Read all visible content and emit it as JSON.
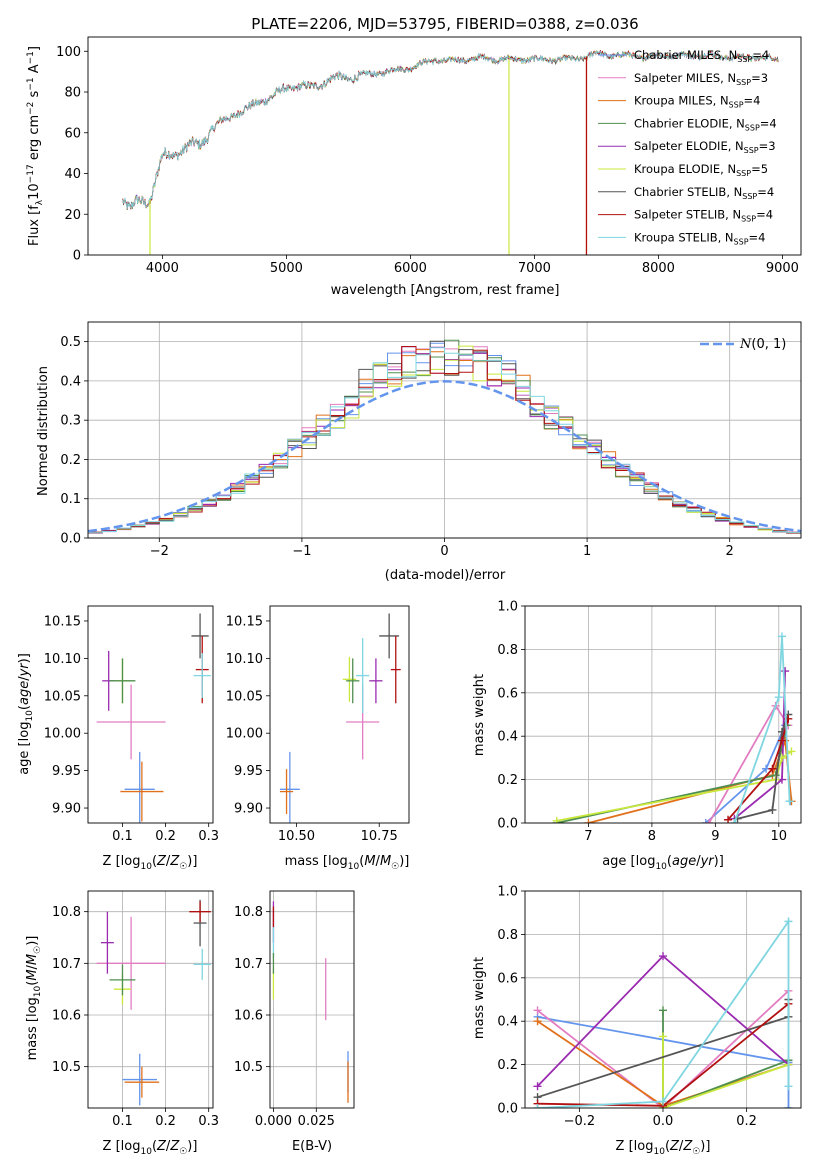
{
  "figure_title": "PLATE=2206, MJD=53795, FIBERID=0388, z=0.036",
  "colors": {
    "chabrier_miles": "#6495ED",
    "salpeter_miles": "#E27DC1",
    "kroupa_miles": "#E1701A",
    "chabrier_elodie": "#4F8F4F",
    "salpeter_elodie": "#9A2BB0",
    "kroupa_elodie": "#C8E83E",
    "chabrier_stelib": "#555555",
    "salpeter_stelib": "#B21010",
    "kroupa_stelib": "#7FD6E0",
    "normal_curve": "#6495ED"
  },
  "chart_data": [
    {
      "type": "line",
      "name": "spectrum",
      "xlabel": "wavelength [Angstrom, rest frame]",
      "ylabel": "Flux [f_λ 10^-17 erg cm^-2 s^-1 A^-1]",
      "xlim": [
        3400,
        9150
      ],
      "ylim": [
        0,
        107
      ],
      "xticks": [
        "4000",
        "5000",
        "6000",
        "7000",
        "8000",
        "9000"
      ],
      "yticks": [
        "0",
        "20",
        "40",
        "60",
        "80",
        "100"
      ],
      "continuum": [
        [
          3680,
          28
        ],
        [
          3740,
          22
        ],
        [
          3800,
          26
        ],
        [
          3900,
          27
        ],
        [
          3950,
          38
        ],
        [
          4000,
          48
        ],
        [
          4100,
          50
        ],
        [
          4200,
          53
        ],
        [
          4300,
          54
        ],
        [
          4400,
          62
        ],
        [
          4500,
          66
        ],
        [
          4600,
          70
        ],
        [
          4700,
          72
        ],
        [
          4800,
          76
        ],
        [
          4900,
          78
        ],
        [
          5000,
          82
        ],
        [
          5100,
          83
        ],
        [
          5200,
          82
        ],
        [
          5300,
          85
        ],
        [
          5400,
          87
        ],
        [
          5500,
          87
        ],
        [
          5600,
          88
        ],
        [
          5700,
          89
        ],
        [
          5800,
          90
        ],
        [
          5900,
          91
        ],
        [
          6000,
          92
        ],
        [
          6100,
          94
        ],
        [
          6200,
          96
        ],
        [
          6300,
          95
        ],
        [
          6400,
          96
        ],
        [
          6500,
          96
        ],
        [
          6600,
          97
        ],
        [
          6700,
          96
        ],
        [
          6800,
          96
        ],
        [
          6900,
          96
        ],
        [
          7000,
          96
        ],
        [
          7100,
          96
        ],
        [
          7200,
          96
        ],
        [
          7300,
          96
        ],
        [
          7400,
          97
        ],
        [
          7500,
          99
        ],
        [
          7600,
          98
        ],
        [
          7700,
          98
        ],
        [
          7800,
          98
        ],
        [
          7900,
          97
        ],
        [
          8000,
          98
        ],
        [
          8200,
          98
        ],
        [
          8400,
          98
        ],
        [
          8600,
          97
        ],
        [
          8800,
          97
        ],
        [
          8970,
          96
        ]
      ],
      "dropouts": [
        {
          "series": "Kroupa ELODIE",
          "x": 3900
        },
        {
          "series": "Kroupa ELODIE",
          "x": 6795
        },
        {
          "series": "Kroupa MILES",
          "x": 7420
        },
        {
          "series": "Salpeter STELIB",
          "x": 7420
        }
      ],
      "legend": [
        {
          "label": "Chabrier MILES, N",
          "sub": "SSP",
          "tail": "=4",
          "color_key": "chabrier_miles"
        },
        {
          "label": "Salpeter MILES, N",
          "sub": "SSP",
          "tail": "=3",
          "color_key": "salpeter_miles"
        },
        {
          "label": "Kroupa MILES, N",
          "sub": "SSP",
          "tail": "=4",
          "color_key": "kroupa_miles"
        },
        {
          "label": "Chabrier ELODIE, N",
          "sub": "SSP",
          "tail": "=4",
          "color_key": "chabrier_elodie"
        },
        {
          "label": "Salpeter ELODIE, N",
          "sub": "SSP",
          "tail": "=3",
          "color_key": "salpeter_elodie"
        },
        {
          "label": "Kroupa ELODIE, N",
          "sub": "SSP",
          "tail": "=5",
          "color_key": "kroupa_elodie"
        },
        {
          "label": "Chabrier STELIB, N",
          "sub": "SSP",
          "tail": "=4",
          "color_key": "chabrier_stelib"
        },
        {
          "label": "Salpeter STELIB, N",
          "sub": "SSP",
          "tail": "=4",
          "color_key": "salpeter_stelib"
        },
        {
          "label": "Kroupa STELIB, N",
          "sub": "SSP",
          "tail": "=4",
          "color_key": "kroupa_stelib"
        }
      ]
    },
    {
      "type": "histogram",
      "name": "residuals",
      "xlabel": "(data-model)/error",
      "ylabel": "Normed distribution",
      "xlim": [
        -2.5,
        2.5
      ],
      "ylim": [
        0,
        0.55
      ],
      "grid": true,
      "xticks": [
        "−2",
        "−1",
        "0",
        "1",
        "2"
      ],
      "yticks": [
        "0.0",
        "0.1",
        "0.2",
        "0.3",
        "0.4",
        "0.5"
      ],
      "bin_width": 0.1,
      "curve_label": "N(0, 1)",
      "legend_position": "upper right"
    },
    {
      "type": "scatter",
      "name": "age-vs-Z",
      "xlabel": "Z [log10(Z/Z☉)]",
      "ylabel": "age  [log10(age/yr)]",
      "xlim": [
        0.02,
        0.31
      ],
      "ylim": [
        9.88,
        10.17
      ],
      "xticks": [
        "0.1",
        "0.2",
        "0.3"
      ],
      "yticks": [
        "9.90",
        "9.95",
        "10.00",
        "10.05",
        "10.10",
        "10.15"
      ],
      "points": [
        {
          "k": "chabrier_miles",
          "x": 0.14,
          "y": 9.925,
          "dx": 0.035,
          "dy": 0.05
        },
        {
          "k": "kroupa_miles",
          "x": 0.145,
          "y": 9.922,
          "dx": 0.05,
          "dy": 0.04
        },
        {
          "k": "salpeter_miles",
          "x": 0.12,
          "y": 10.015,
          "dx": 0.08,
          "dy": 0.05
        },
        {
          "k": "salpeter_elodie",
          "x": 0.068,
          "y": 10.07,
          "dx": 0.015,
          "dy": 0.04
        },
        {
          "k": "kroupa_elodie",
          "x": 0.1,
          "y": 10.07,
          "dx": 0.02,
          "dy": 0.03
        },
        {
          "k": "chabrier_elodie",
          "x": 0.1,
          "y": 10.07,
          "dx": 0.03,
          "dy": 0.03
        },
        {
          "k": "chabrier_stelib",
          "x": 0.28,
          "y": 10.13,
          "dx": 0.02,
          "dy": 0.03
        },
        {
          "k": "salpeter_stelib",
          "x": 0.285,
          "y": 10.085,
          "dx": 0.015,
          "dy": 0.045
        },
        {
          "k": "kroupa_stelib",
          "x": 0.285,
          "y": 10.077,
          "dx": 0.02,
          "dy": 0.03
        }
      ]
    },
    {
      "type": "scatter",
      "name": "age-vs-mass",
      "xlabel": "mass [log10(M/M☉)]",
      "ylabel": "",
      "xlim": [
        10.42,
        10.84
      ],
      "ylim": [
        9.88,
        10.17
      ],
      "xticks": [
        "10.50",
        "10.75"
      ],
      "yticks": [
        "9.90",
        "9.95",
        "10.00",
        "10.05",
        "10.10",
        "10.15"
      ],
      "points": [
        {
          "k": "chabrier_miles",
          "x": 10.48,
          "y": 9.925,
          "dx": 0.03,
          "dy": 0.05
        },
        {
          "k": "kroupa_miles",
          "x": 10.47,
          "y": 9.922,
          "dx": 0.02,
          "dy": 0.03
        },
        {
          "k": "salpeter_miles",
          "x": 10.7,
          "y": 10.015,
          "dx": 0.05,
          "dy": 0.05
        },
        {
          "k": "salpeter_elodie",
          "x": 10.74,
          "y": 10.07,
          "dx": 0.02,
          "dy": 0.03
        },
        {
          "k": "kroupa_elodie",
          "x": 10.66,
          "y": 10.072,
          "dx": 0.02,
          "dy": 0.03
        },
        {
          "k": "chabrier_elodie",
          "x": 10.67,
          "y": 10.07,
          "dx": 0.02,
          "dy": 0.03
        },
        {
          "k": "chabrier_stelib",
          "x": 10.78,
          "y": 10.13,
          "dx": 0.03,
          "dy": 0.03
        },
        {
          "k": "salpeter_stelib",
          "x": 10.8,
          "y": 10.085,
          "dx": 0.015,
          "dy": 0.045
        },
        {
          "k": "kroupa_stelib",
          "x": 10.7,
          "y": 10.077,
          "dx": 0.02,
          "dy": 0.05
        }
      ]
    },
    {
      "type": "line",
      "name": "mass-weight-vs-age",
      "xlabel": "age  [log10(age/yr)]",
      "ylabel": "mass weight",
      "xlim": [
        6.0,
        10.35
      ],
      "ylim": [
        0,
        1.0
      ],
      "grid": true,
      "xticks": [
        "7",
        "8",
        "9",
        "10"
      ],
      "yticks": [
        "0.0",
        "0.2",
        "0.4",
        "0.6",
        "0.8",
        "1.0"
      ],
      "series": [
        {
          "k": "chabrier_miles",
          "pts": [
            [
              8.85,
              0.0
            ],
            [
              9.8,
              0.25
            ],
            [
              10.1,
              0.45
            ],
            [
              10.18,
              0.1
            ]
          ]
        },
        {
          "k": "salpeter_miles",
          "pts": [
            [
              8.9,
              0.0
            ],
            [
              9.95,
              0.54
            ],
            [
              10.15,
              0.45
            ]
          ]
        },
        {
          "k": "kroupa_miles",
          "pts": [
            [
              7.0,
              0.0
            ],
            [
              9.9,
              0.22
            ],
            [
              10.1,
              0.38
            ],
            [
              10.2,
              0.1
            ]
          ]
        },
        {
          "k": "chabrier_elodie",
          "pts": [
            [
              6.5,
              0.0
            ],
            [
              9.95,
              0.22
            ],
            [
              10.12,
              0.45
            ]
          ]
        },
        {
          "k": "salpeter_elodie",
          "pts": [
            [
              9.3,
              0.02
            ],
            [
              10.05,
              0.2
            ],
            [
              10.1,
              0.7
            ]
          ]
        },
        {
          "k": "kroupa_elodie",
          "pts": [
            [
              6.5,
              0.01
            ],
            [
              9.95,
              0.2
            ],
            [
              10.05,
              0.3
            ],
            [
              10.2,
              0.33
            ]
          ]
        },
        {
          "k": "chabrier_stelib",
          "pts": [
            [
              9.35,
              0.02
            ],
            [
              9.9,
              0.06
            ],
            [
              10.05,
              0.42
            ],
            [
              10.15,
              0.5
            ]
          ]
        },
        {
          "k": "salpeter_stelib",
          "pts": [
            [
              9.2,
              0.015
            ],
            [
              9.9,
              0.25
            ],
            [
              10.05,
              0.38
            ],
            [
              10.15,
              0.48
            ]
          ]
        },
        {
          "k": "kroupa_stelib",
          "pts": [
            [
              9.3,
              0.0
            ],
            [
              10.0,
              0.58
            ],
            [
              10.05,
              0.86
            ],
            [
              10.17,
              0.1
            ]
          ]
        }
      ]
    },
    {
      "type": "scatter",
      "name": "mass-vs-Z",
      "xlabel": "Z [log10(Z/Z☉)]",
      "ylabel": "mass [log10(M/M☉)]",
      "xlim": [
        0.02,
        0.31
      ],
      "ylim": [
        10.42,
        10.84
      ],
      "xticks": [
        "0.1",
        "0.2",
        "0.3"
      ],
      "yticks": [
        "10.5",
        "10.6",
        "10.7",
        "10.8"
      ],
      "grid": true,
      "points": [
        {
          "k": "chabrier_miles",
          "x": 0.14,
          "y": 10.475,
          "dx": 0.04,
          "dy": 0.05
        },
        {
          "k": "kroupa_miles",
          "x": 0.145,
          "y": 10.47,
          "dx": 0.04,
          "dy": 0.03
        },
        {
          "k": "salpeter_miles",
          "x": 0.12,
          "y": 10.7,
          "dx": 0.08,
          "dy": 0.09
        },
        {
          "k": "salpeter_elodie",
          "x": 0.065,
          "y": 10.74,
          "dx": 0.015,
          "dy": 0.06
        },
        {
          "k": "kroupa_elodie",
          "x": 0.1,
          "y": 10.65,
          "dx": 0.02,
          "dy": 0.03
        },
        {
          "k": "chabrier_elodie",
          "x": 0.1,
          "y": 10.668,
          "dx": 0.03,
          "dy": 0.03
        },
        {
          "k": "chabrier_stelib",
          "x": 0.28,
          "y": 10.778,
          "dx": 0.015,
          "dy": 0.045
        },
        {
          "k": "salpeter_stelib",
          "x": 0.28,
          "y": 10.8,
          "dx": 0.025,
          "dy": 0.02
        },
        {
          "k": "kroupa_stelib",
          "x": 0.285,
          "y": 10.698,
          "dx": 0.02,
          "dy": 0.03
        }
      ]
    },
    {
      "type": "scatter",
      "name": "mass-vs-ebv",
      "xlabel": "E(B-V)",
      "ylabel": "",
      "xlim": [
        -0.002,
        0.047
      ],
      "ylim": [
        10.42,
        10.84
      ],
      "xticks": [
        "0.000",
        "0.025"
      ],
      "yticks": [
        "10.5",
        "10.6",
        "10.7",
        "10.8"
      ],
      "grid": true,
      "points": [
        {
          "k": "chabrier_miles",
          "x": 0.0435,
          "y": 10.49,
          "dx": 0.0,
          "dy": 0.04
        },
        {
          "k": "kroupa_miles",
          "x": 0.0435,
          "y": 10.47,
          "dx": 0.0,
          "dy": 0.04
        },
        {
          "k": "salpeter_miles",
          "x": 0.0305,
          "y": 10.65,
          "dx": 0.0,
          "dy": 0.06
        },
        {
          "k": "salpeter_elodie",
          "x": 0.0,
          "y": 10.78,
          "dx": 0.0,
          "dy": 0.04
        },
        {
          "k": "salpeter_stelib",
          "x": 0.0,
          "y": 10.79,
          "dx": 0.0,
          "dy": 0.02
        },
        {
          "k": "kroupa_elodie",
          "x": 0.0,
          "y": 10.66,
          "dx": 0.0,
          "dy": 0.03
        },
        {
          "k": "kroupa_stelib",
          "x": 0.0,
          "y": 10.74,
          "dx": 0.0,
          "dy": 0.03
        },
        {
          "k": "chabrier_elodie",
          "x": 0.0,
          "y": 10.7,
          "dx": 0.0,
          "dy": 0.02
        }
      ]
    },
    {
      "type": "line",
      "name": "mass-weight-vs-Z",
      "xlabel": "Z [log10(Z/Z☉)]",
      "ylabel": "mass weight",
      "xlim": [
        -0.33,
        0.33
      ],
      "ylim": [
        0,
        1.0
      ],
      "grid": true,
      "xticks": [
        "−0.2",
        "0.0",
        "0.2"
      ],
      "yticks": [
        "0.0",
        "0.2",
        "0.4",
        "0.6",
        "0.8",
        "1.0"
      ],
      "series": [
        {
          "k": "chabrier_miles",
          "pts": [
            [
              -0.3,
              0.42
            ],
            [
              0.3,
              0.21
            ],
            [
              0.3,
              0.0
            ]
          ]
        },
        {
          "k": "salpeter_miles",
          "pts": [
            [
              -0.3,
              0.45
            ],
            [
              0.0,
              0.0
            ],
            [
              0.3,
              0.54
            ]
          ]
        },
        {
          "k": "kroupa_miles",
          "pts": [
            [
              -0.3,
              0.4
            ],
            [
              0.0,
              0.01
            ],
            [
              0.3,
              0.2
            ]
          ]
        },
        {
          "k": "chabrier_elodie",
          "pts": [
            [
              0.0,
              0.45
            ],
            [
              0.0,
              0.0
            ],
            [
              0.3,
              0.22
            ]
          ]
        },
        {
          "k": "salpeter_elodie",
          "pts": [
            [
              -0.3,
              0.1
            ],
            [
              0.0,
              0.7
            ],
            [
              0.3,
              0.2
            ]
          ]
        },
        {
          "k": "kroupa_elodie",
          "pts": [
            [
              0.0,
              0.33
            ],
            [
              0.0,
              0.0
            ],
            [
              0.3,
              0.2
            ]
          ]
        },
        {
          "k": "chabrier_stelib",
          "pts": [
            [
              -0.3,
              0.05
            ],
            [
              0.3,
              0.42
            ],
            [
              0.3,
              0.5
            ]
          ]
        },
        {
          "k": "salpeter_stelib",
          "pts": [
            [
              -0.3,
              0.02
            ],
            [
              0.0,
              0.01
            ],
            [
              0.3,
              0.48
            ]
          ]
        },
        {
          "k": "kroupa_stelib",
          "pts": [
            [
              -0.3,
              0.0
            ],
            [
              0.0,
              0.03
            ],
            [
              0.3,
              0.86
            ],
            [
              0.3,
              0.1
            ]
          ]
        }
      ]
    }
  ]
}
